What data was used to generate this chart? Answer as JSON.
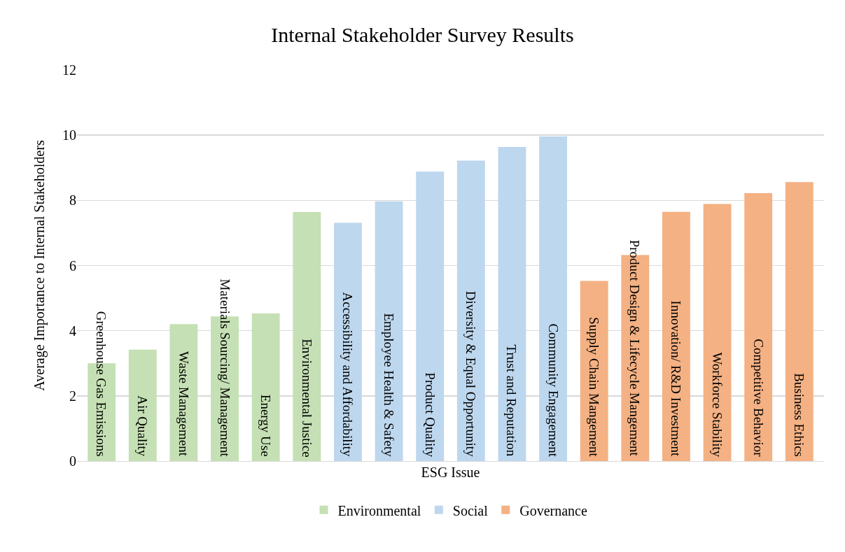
{
  "chart_data": {
    "type": "bar",
    "title": "Internal Stakeholder Survey Results",
    "xlabel": "ESG Issue",
    "ylabel": "Average Importance to Internal Stakeholders",
    "categories": [
      "Greenhouse Gas Emissions",
      "Air Quality",
      "Waste Management",
      "Materials Sourcing/ Management",
      "Energy Use",
      "Environmental Justice",
      "Accessibility and Affordability",
      "Employee Health & Safety",
      "Product Quality",
      "Diversity & Equal Opportunity",
      "Trust and Reputation",
      "Community Engagement",
      "Supply Chain Mangement",
      "Product Design & Lifecycle Mangement",
      "Innovation/ R&D Investment",
      "Workforce Stability",
      "Competitive Behavior",
      "Business Ethics"
    ],
    "series": [
      {
        "name": "Environmental",
        "color": "#c5e0b4",
        "values": [
          3.0,
          3.42,
          4.2,
          4.44,
          4.53,
          7.64,
          null,
          null,
          null,
          null,
          null,
          null,
          null,
          null,
          null,
          null,
          null,
          null
        ]
      },
      {
        "name": "Social",
        "color": "#bdd7ee",
        "values": [
          null,
          null,
          null,
          null,
          null,
          null,
          7.31,
          7.97,
          8.88,
          9.22,
          9.64,
          9.96,
          null,
          null,
          null,
          null,
          null,
          null
        ]
      },
      {
        "name": "Governance",
        "color": "#f4b183",
        "values": [
          null,
          null,
          null,
          null,
          null,
          null,
          null,
          null,
          null,
          null,
          null,
          null,
          5.53,
          6.32,
          7.65,
          7.89,
          8.22,
          8.56
        ]
      }
    ],
    "ylim": [
      0,
      12
    ],
    "yticks": [
      0,
      2,
      4,
      6,
      8,
      10,
      12
    ],
    "grid": "y",
    "legend": "bottom",
    "tick_labels": "y"
  }
}
